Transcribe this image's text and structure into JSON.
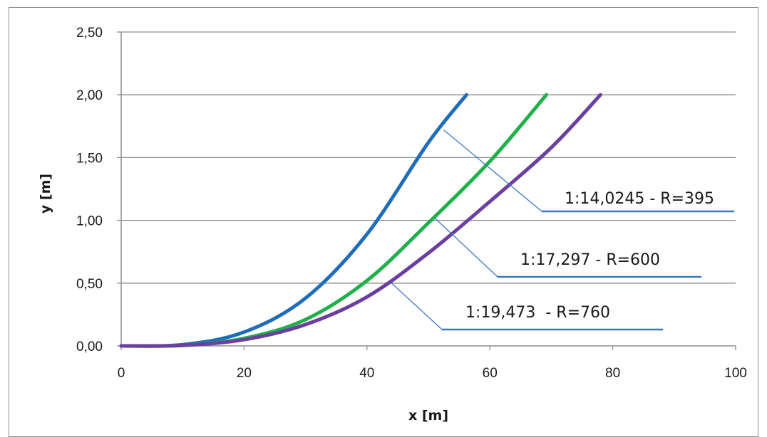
{
  "chart_data": {
    "type": "line",
    "title": "",
    "xlabel": "x [m]",
    "ylabel": "y [m]",
    "xlim": [
      0,
      100
    ],
    "ylim": [
      0,
      2.5
    ],
    "x_ticks": [
      "0",
      "20",
      "40",
      "60",
      "80",
      "100"
    ],
    "y_ticks": [
      "0,00",
      "0,50",
      "1,00",
      "1,50",
      "2,00",
      "2,50"
    ],
    "grid": "horizontal",
    "legend": "none",
    "series": [
      {
        "color": "#1f6db8",
        "x": [
          0,
          10,
          20,
          30,
          40,
          50,
          56.2
        ],
        "y": [
          0,
          0.01,
          0.11,
          0.38,
          0.89,
          1.62,
          2.0
        ]
      },
      {
        "color": "#1fb04b",
        "x": [
          0,
          10,
          20,
          30,
          40,
          50,
          60,
          69.2
        ],
        "y": [
          0,
          0.005,
          0.06,
          0.21,
          0.52,
          0.98,
          1.47,
          2.0
        ]
      },
      {
        "color": "#6b3fa0",
        "x": [
          0,
          10,
          20,
          30,
          40,
          50,
          60,
          70,
          78.0
        ],
        "y": [
          0,
          0.004,
          0.05,
          0.17,
          0.39,
          0.74,
          1.15,
          1.58,
          2.0
        ]
      }
    ],
    "annotations": [
      {
        "text": "1:14,0245 - R=395",
        "target_series": 0,
        "x": 52.5,
        "y": 1.72
      },
      {
        "text": "1:17,297 - R=600",
        "target_series": 1,
        "x": 51.0,
        "y": 1.02
      },
      {
        "text": "1:19,473  - R=760",
        "target_series": 2,
        "x": 44.0,
        "y": 0.5
      }
    ]
  }
}
